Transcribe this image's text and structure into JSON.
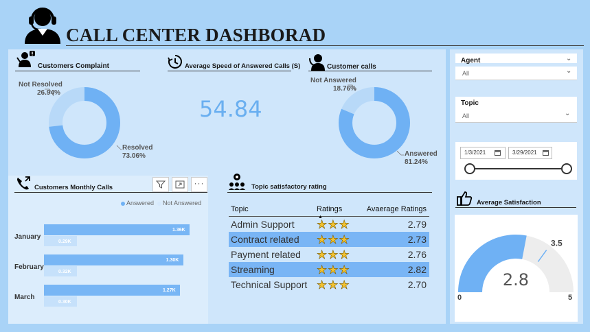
{
  "header": {
    "title": "CALL CENTER DASHBORAD"
  },
  "complaint": {
    "title": "Customers Complaint",
    "not_resolved_label": "Not Resolved",
    "not_resolved_pct": "26.94%",
    "resolved_label": "Resolved",
    "resolved_pct": "73.06%",
    "resolved_fraction": 0.7306
  },
  "speed": {
    "title": "Average Speed of Answered Calls (S)",
    "value": "54.84"
  },
  "calls": {
    "title": "Customer calls",
    "not_answered_label": "Not Answered",
    "not_answered_pct": "18.76%",
    "answered_label": "Answered",
    "answered_pct": "81.24%",
    "answered_fraction": 0.8124
  },
  "monthly": {
    "title": "Customers  Monthly Calls",
    "legend_answered": "Answered",
    "legend_not_answered": "Not Answered",
    "months": [
      {
        "name": "January",
        "answered": 1360,
        "answered_label": "1.36K",
        "not_answered": 290,
        "not_answered_label": "0.29K"
      },
      {
        "name": "February",
        "answered": 1300,
        "answered_label": "1.30K",
        "not_answered": 320,
        "not_answered_label": "0.32K"
      },
      {
        "name": "March",
        "answered": 1270,
        "answered_label": "1.27K",
        "not_answered": 300,
        "not_answered_label": "0.30K"
      }
    ]
  },
  "topics": {
    "title": "Topic satisfactory rating",
    "headers": {
      "topic": "Topic",
      "ratings": "Ratings",
      "avg": "Avaerage Ratings"
    },
    "rows": [
      {
        "topic": "Admin Support",
        "stars": 3,
        "avg": "2.79"
      },
      {
        "topic": "Contract related",
        "stars": 3,
        "avg": "2.73"
      },
      {
        "topic": "Payment related",
        "stars": 3,
        "avg": "2.76"
      },
      {
        "topic": "Streaming",
        "stars": 3,
        "avg": "2.82"
      },
      {
        "topic": "Technical Support",
        "stars": 3,
        "avg": "2.70"
      }
    ]
  },
  "filters": {
    "agent_label": "Agent",
    "agent_value": "All",
    "topic_label": "Topic",
    "topic_value": "All",
    "date_start": "1/3/2021",
    "date_end": "3/29/2021"
  },
  "satisfaction": {
    "title": "Average Satisfaction",
    "value": "2.8",
    "target": "3.5",
    "min": "0",
    "max": "5",
    "value_num": 2.8,
    "target_num": 3.5,
    "min_num": 0,
    "max_num": 5
  },
  "colors": {
    "accent": "#6fb1f4",
    "light": "#b8d9f8",
    "background": "#a9d3f7"
  }
}
